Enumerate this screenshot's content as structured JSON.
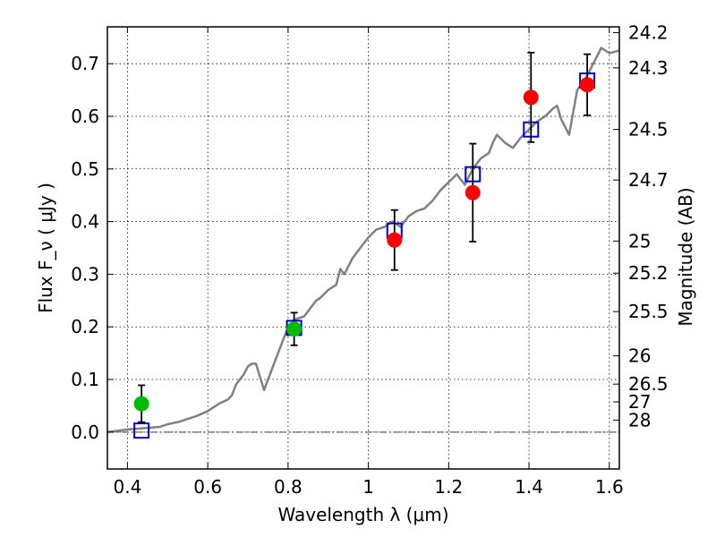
{
  "chart_data": {
    "type": "scatter",
    "xlabel": "Wavelength  λ (μm)",
    "ylabel_left": "Flux  F_ν  ( μJy )",
    "ylabel_right": "Magnitude (AB)",
    "xlim": [
      0.35,
      1.625
    ],
    "ylim": [
      -0.07,
      0.77
    ],
    "grid": true,
    "x_ticks": [
      0.4,
      0.6,
      0.8,
      1.0,
      1.2,
      1.4,
      1.6
    ],
    "x_tick_labels": [
      "0.4",
      "0.6",
      "0.8",
      "1",
      "1.2",
      "1.4",
      "1.6"
    ],
    "y_ticks": [
      0.0,
      0.1,
      0.2,
      0.3,
      0.4,
      0.5,
      0.6,
      0.7
    ],
    "y_tick_labels": [
      "0.0",
      "0.1",
      "0.2",
      "0.3",
      "0.4",
      "0.5",
      "0.6",
      "0.7"
    ],
    "right_ticks": [
      {
        "label": "24.2",
        "flux": 0.759
      },
      {
        "label": "24.3",
        "flux": 0.692
      },
      {
        "label": "24.5",
        "flux": 0.575
      },
      {
        "label": "24.7",
        "flux": 0.479
      },
      {
        "label": "25",
        "flux": 0.363
      },
      {
        "label": "25.2",
        "flux": 0.302
      },
      {
        "label": "25.5",
        "flux": 0.229
      },
      {
        "label": "26",
        "flux": 0.145
      },
      {
        "label": "26.5",
        "flux": 0.0912
      },
      {
        "label": "27",
        "flux": 0.0575
      },
      {
        "label": "28",
        "flux": 0.0229
      }
    ],
    "zero_line": 0.0,
    "series": [
      {
        "marker": "circle",
        "color": "#ff0000",
        "points": [
          {
            "x": 1.065,
            "y": 0.365,
            "err": 0.057
          },
          {
            "x": 1.26,
            "y": 0.455,
            "err": 0.093
          },
          {
            "x": 1.405,
            "y": 0.636,
            "err": 0.085
          },
          {
            "x": 1.545,
            "y": 0.66,
            "err": 0.058
          }
        ]
      },
      {
        "marker": "circle",
        "color": "#00bb00",
        "points": [
          {
            "x": 0.435,
            "y": 0.054,
            "err": 0.035
          },
          {
            "x": 0.815,
            "y": 0.196,
            "err": 0.031
          }
        ]
      },
      {
        "marker": "square-open",
        "color": "#0000cc",
        "points": [
          {
            "x": 0.435,
            "y": 0.003
          },
          {
            "x": 0.815,
            "y": 0.198
          },
          {
            "x": 1.065,
            "y": 0.383
          },
          {
            "x": 1.26,
            "y": 0.49
          },
          {
            "x": 1.405,
            "y": 0.575
          },
          {
            "x": 1.545,
            "y": 0.668
          }
        ]
      },
      {
        "type": "line",
        "color": "#808080",
        "x": [
          0.35,
          0.4,
          0.45,
          0.48,
          0.5,
          0.53,
          0.55,
          0.57,
          0.6,
          0.62,
          0.63,
          0.65,
          0.66,
          0.67,
          0.68,
          0.69,
          0.7,
          0.71,
          0.72,
          0.74,
          0.76,
          0.78,
          0.8,
          0.82,
          0.84,
          0.86,
          0.87,
          0.88,
          0.9,
          0.92,
          0.93,
          0.94,
          0.96,
          0.98,
          1.0,
          1.02,
          1.04,
          1.06,
          1.08,
          1.1,
          1.12,
          1.14,
          1.16,
          1.18,
          1.2,
          1.22,
          1.23,
          1.24,
          1.26,
          1.28,
          1.3,
          1.31,
          1.32,
          1.34,
          1.36,
          1.38,
          1.4,
          1.42,
          1.44,
          1.46,
          1.47,
          1.48,
          1.5,
          1.52,
          1.54,
          1.56,
          1.58,
          1.6,
          1.625
        ],
        "y": [
          0.0,
          0.005,
          0.008,
          0.01,
          0.015,
          0.02,
          0.025,
          0.03,
          0.04,
          0.05,
          0.055,
          0.062,
          0.07,
          0.09,
          0.1,
          0.11,
          0.125,
          0.13,
          0.13,
          0.08,
          0.12,
          0.16,
          0.2,
          0.215,
          0.22,
          0.24,
          0.25,
          0.255,
          0.27,
          0.28,
          0.31,
          0.3,
          0.33,
          0.35,
          0.37,
          0.385,
          0.39,
          0.4,
          0.39,
          0.41,
          0.42,
          0.425,
          0.44,
          0.46,
          0.475,
          0.49,
          0.48,
          0.47,
          0.5,
          0.52,
          0.53,
          0.55,
          0.565,
          0.55,
          0.54,
          0.56,
          0.575,
          0.59,
          0.6,
          0.615,
          0.62,
          0.595,
          0.565,
          0.65,
          0.67,
          0.7,
          0.73,
          0.72,
          0.725
        ]
      }
    ]
  }
}
